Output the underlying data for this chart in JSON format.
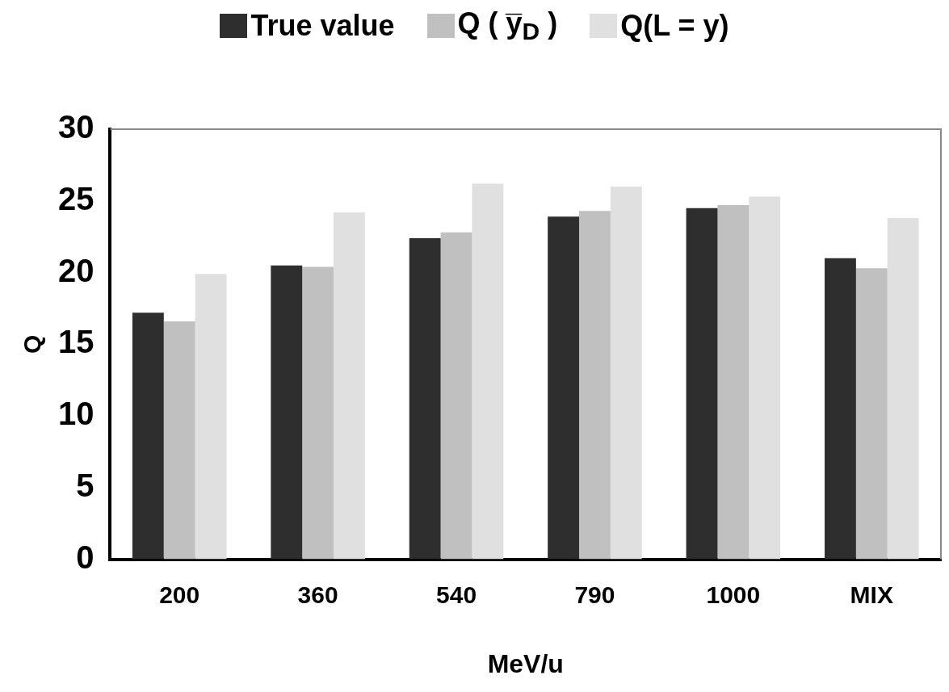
{
  "chart_data": {
    "type": "bar",
    "xlabel": "MeV/u",
    "ylabel": "Q",
    "categories": [
      "200",
      "360",
      "540",
      "790",
      "1000",
      "MIX"
    ],
    "series": [
      {
        "name": "True value",
        "color": "#2e2e2e",
        "values": [
          17.2,
          20.5,
          22.4,
          23.9,
          24.5,
          21.0
        ]
      },
      {
        "name": "Q ( y̅$_{D}$ )",
        "color": "#c0c0c0",
        "values": [
          16.6,
          20.4,
          22.8,
          24.3,
          24.7,
          20.3
        ]
      },
      {
        "name": "Q(L = y)",
        "color": "#e0e0e0",
        "values": [
          19.9,
          24.2,
          26.2,
          26.0,
          25.3,
          23.8
        ]
      }
    ],
    "ylim": [
      0,
      30
    ],
    "yticks": [
      0,
      5,
      10,
      15,
      20,
      25,
      30
    ],
    "grid": false,
    "legend": "top"
  }
}
